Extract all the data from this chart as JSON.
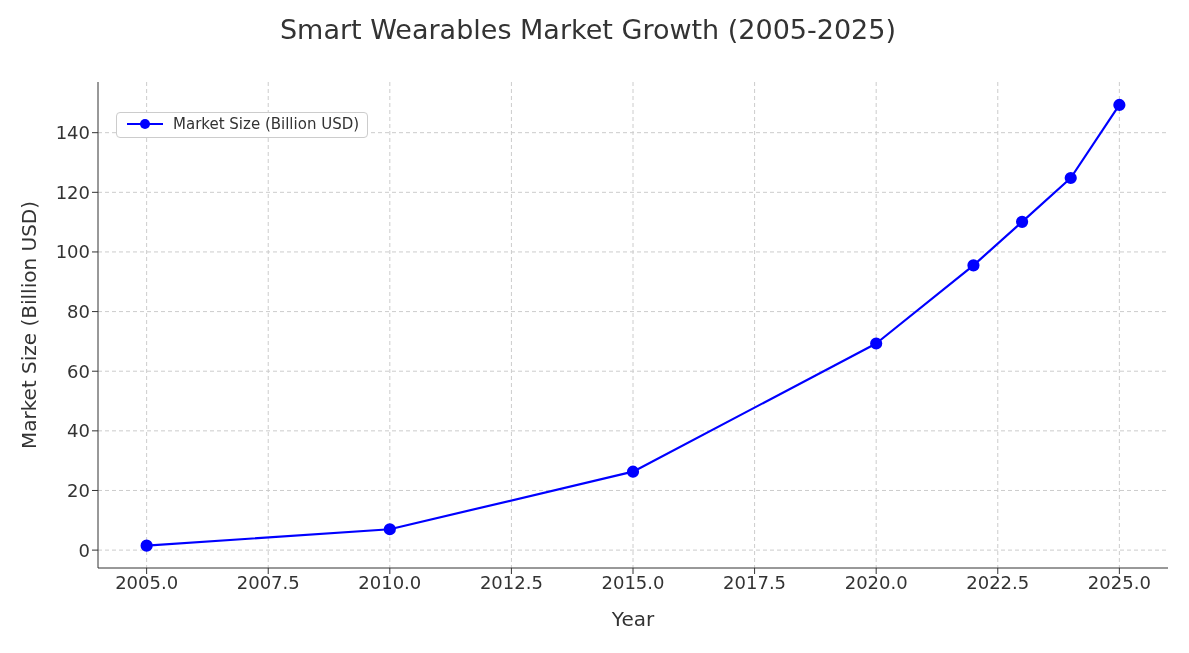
{
  "chart_data": {
    "type": "line",
    "title": "Smart Wearables Market Growth (2005-2025)",
    "xlabel": "Year",
    "ylabel": "Market Size (Billion USD)",
    "x": [
      2005,
      2010,
      2015,
      2020,
      2022,
      2023,
      2024,
      2025
    ],
    "series": [
      {
        "name": "Market Size (Billion USD)",
        "color": "#0000ff",
        "values": [
          1.5,
          7,
          26.3,
          69.3,
          95.5,
          110.1,
          124.8,
          149.3
        ]
      }
    ],
    "xlim": [
      2004,
      2026
    ],
    "xticks": [
      {
        "value": 2005,
        "label": "2005.0"
      },
      {
        "value": 2007.5,
        "label": "2007.5"
      },
      {
        "value": 2010,
        "label": "2010.0"
      },
      {
        "value": 2012.5,
        "label": "2012.5"
      },
      {
        "value": 2015,
        "label": "2015.0"
      },
      {
        "value": 2017.5,
        "label": "2017.5"
      },
      {
        "value": 2020,
        "label": "2020.0"
      },
      {
        "value": 2022.5,
        "label": "2022.5"
      },
      {
        "value": 2025,
        "label": "2025.0"
      }
    ],
    "ylim": [
      -6,
      157
    ],
    "yticks": [
      0,
      20,
      40,
      60,
      80,
      100,
      120,
      140
    ],
    "grid": true,
    "legend": "top left",
    "marker": "circle",
    "line_style": "solid"
  }
}
